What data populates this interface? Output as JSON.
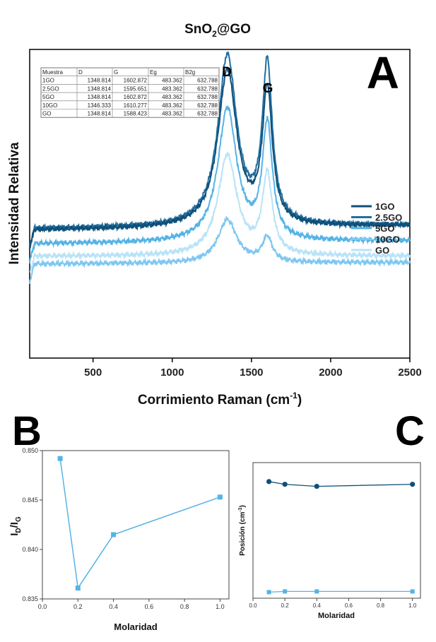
{
  "chart_data": [
    {
      "panel": "A",
      "type": "line",
      "title": "SnO2@GO",
      "xlabel": "Corrimiento Raman (cm-1)",
      "ylabel": "Intensidad Relativa",
      "xlim": [
        100,
        2500
      ],
      "xticks": [
        500,
        1000,
        1500,
        2000,
        2500
      ],
      "ylim": [
        0,
        1
      ],
      "grid": false,
      "legend_position": "right",
      "peak_labels": [
        "D",
        "G"
      ],
      "peaks": {
        "D": 1348,
        "G": 1600
      },
      "series": [
        {
          "name": "1GO",
          "color": "#0f4f78",
          "baseline": 0.415,
          "end": 0.43,
          "d_height": 0.505,
          "g_height": 0.43
        },
        {
          "name": "2.5GO",
          "color": "#1f6fa0",
          "baseline": 0.42,
          "end": 0.43,
          "d_height": 0.55,
          "g_height": 0.51
        },
        {
          "name": "5GO",
          "color": "#55b3e6",
          "baseline": 0.37,
          "end": 0.38,
          "d_height": 0.43,
          "g_height": 0.37
        },
        {
          "name": "10GO",
          "color": "#7fc7f0",
          "baseline": 0.305,
          "end": 0.31,
          "d_height": 0.14,
          "g_height": 0.08
        },
        {
          "name": "GO",
          "color": "#b8e3f8",
          "baseline": 0.33,
          "end": 0.33,
          "d_height": 0.325,
          "g_height": 0.255
        }
      ],
      "table": {
        "columns": [
          "Muestra",
          "D",
          "G",
          "Eg",
          "B2g"
        ],
        "rows": [
          [
            "1GO",
            "1348.814",
            "1602.872",
            "483.362",
            "632.788"
          ],
          [
            "2.5GO",
            "1348.814",
            "1595.651",
            "483.362",
            "632.788"
          ],
          [
            "5GO",
            "1348.814",
            "1602.872",
            "483.362",
            "632.788"
          ],
          [
            "10GO",
            "1346.333",
            "1610.277",
            "483.362",
            "632.788"
          ],
          [
            "GO",
            "1348.814",
            "1588.423",
            "483.362",
            "632.788"
          ]
        ]
      }
    },
    {
      "panel": "B",
      "type": "line",
      "xlabel": "Molaridad",
      "ylabel": "ID/IG",
      "xlim": [
        0.0,
        1.05
      ],
      "xticks": [
        0.0,
        0.2,
        0.4,
        0.6,
        0.8,
        1.0
      ],
      "ylim": [
        0.835,
        0.85
      ],
      "yticks": [
        0.835,
        0.84,
        0.845,
        0.85
      ],
      "x": [
        0.1,
        0.2,
        0.4,
        1.0
      ],
      "values": [
        0.8492,
        0.8361,
        0.8415,
        0.8453
      ],
      "color": "#55b3e6"
    },
    {
      "panel": "C",
      "type": "line",
      "xlabel": "Molaridad",
      "ylabel": "Posición (cm-1)",
      "xlim": [
        0.0,
        1.05
      ],
      "xticks": [
        0.0,
        0.2,
        0.4,
        0.6,
        0.8,
        1.0
      ],
      "ylim": [
        0,
        1
      ],
      "x": [
        0.1,
        0.2,
        0.4,
        1.0
      ],
      "series": [
        {
          "marker": "circle",
          "color": "#0f4f78",
          "values": [
            0.86,
            0.84,
            0.825,
            0.84
          ]
        },
        {
          "marker": "square",
          "color": "#55b3e6",
          "values": [
            0.045,
            0.05,
            0.05,
            0.05
          ]
        }
      ]
    }
  ],
  "labels": {
    "title_main": "SnO",
    "title_sub": "2",
    "title_rest": "@GO",
    "xlabel_main": "Corrimiento Raman (cm",
    "xlabel_sup": "-1",
    "xlabel_close": ")",
    "panelC_ylabel_main": "Posición (cm",
    "panelC_ylabel_sup": "-1",
    "panelC_ylabel_close": ")",
    "panelB_ylabel_main": "I",
    "panelB_ylabel_sub1": "D",
    "panelB_ylabel_slash": "/I",
    "panelB_ylabel_sub2": "G",
    "panel_letters": {
      "A": "A",
      "B": "B",
      "C": "C"
    },
    "c_xtick_labels": [
      "0.0",
      "0.2",
      "0.4",
      "0.6",
      "0.8",
      "1.0"
    ],
    "b_xtick_labels": [
      "0.0",
      "0.2",
      "0.4",
      "0.6",
      "0.8",
      "1.0"
    ],
    "b_ytick_labels": [
      "0.835",
      "0.840",
      "0.845",
      "0.850"
    ]
  }
}
